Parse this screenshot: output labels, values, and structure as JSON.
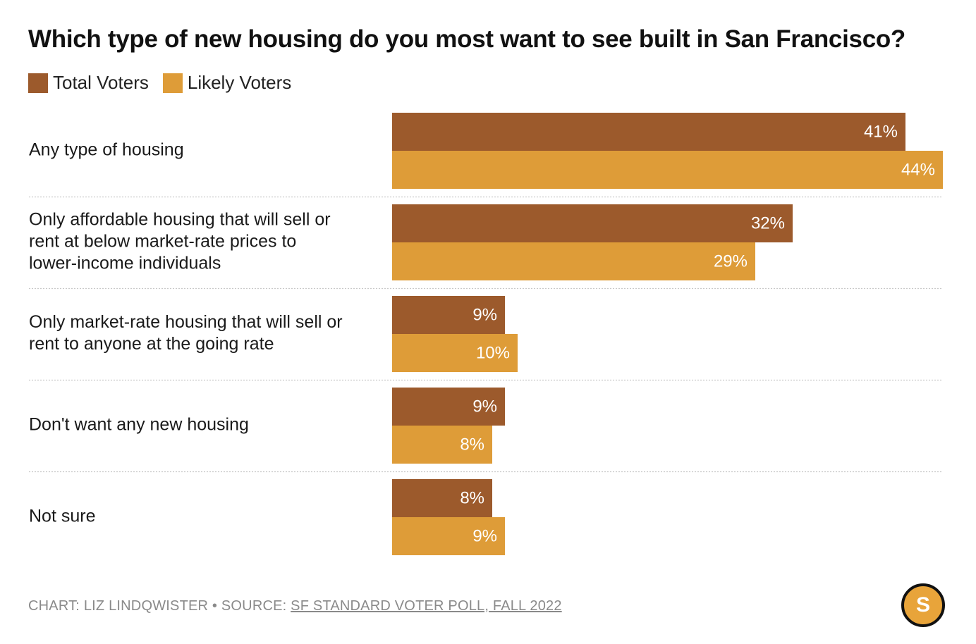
{
  "colors": {
    "total": "#9c5a2c",
    "likely": "#de9c38",
    "divider": "#c9c9c9"
  },
  "chart_data": {
    "type": "bar",
    "orientation": "horizontal",
    "title": "Which type of new housing do you most want to see built in San Francisco?",
    "legend_placement": "top-left",
    "categories": [
      [
        "Any type of housing"
      ],
      [
        "Only affordable housing that will sell or",
        "rent at below market-rate prices to",
        "lower-income individuals"
      ],
      [
        "Only market-rate housing that will sell or",
        "rent to anyone at the going rate"
      ],
      [
        "Don't want any new housing"
      ],
      [
        "Not sure"
      ]
    ],
    "series": [
      {
        "name": "Total Voters",
        "values": [
          41,
          32,
          9,
          9,
          8
        ],
        "labels": [
          "41%",
          "32%",
          "9%",
          "9%",
          "8%"
        ]
      },
      {
        "name": "Likely Voters",
        "values": [
          44,
          29,
          10,
          8,
          9
        ],
        "labels": [
          "44%",
          "29%",
          "10%",
          "8%",
          "9%"
        ]
      }
    ],
    "xlim": [
      0,
      44
    ],
    "grid": false
  },
  "footer": {
    "prefix": "CHART: LIZ LINDQWISTER • SOURCE: ",
    "source_link": "SF STANDARD VOTER POLL, FALL 2022"
  },
  "logo": {
    "letter": "S"
  }
}
